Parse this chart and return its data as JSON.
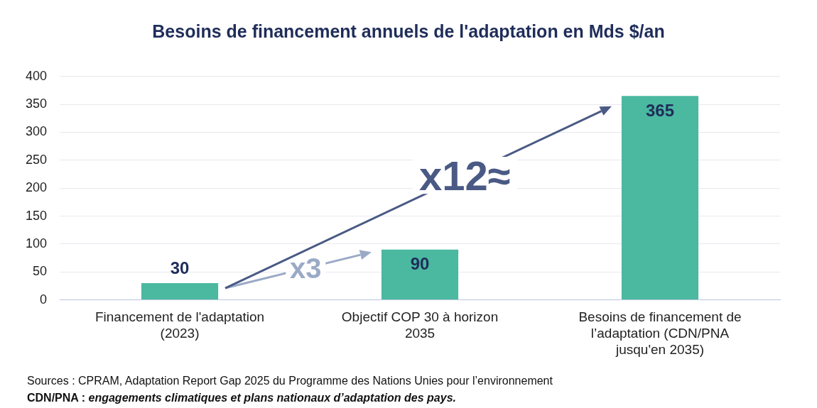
{
  "chart_data": {
    "type": "bar",
    "title": "Besoins de financement annuels de l'adaptation en Mds $/an",
    "categories": [
      "Financement de l'adaptation (2023)",
      "Objectif COP 30 à horizon 2035",
      "Besoins de financement de l’adaptation (CDN/PNA jusqu'en 2035)"
    ],
    "values": [
      30,
      90,
      365
    ],
    "color": "#4bb8a0",
    "ylim": [
      0,
      400
    ],
    "yticks": [
      0,
      50,
      100,
      150,
      200,
      250,
      300,
      350,
      400
    ],
    "grid": "y",
    "data_labels": true,
    "annotations": [
      "x3",
      "x12≈",
      "Sources : CPRAM, Adaptation Report Gap 2025 du Programme des Nations Unies pour l’environnement",
      "CDN/PNA : engagements climatiques et  plans nationaux d’adaptation des pays."
    ]
  }
}
